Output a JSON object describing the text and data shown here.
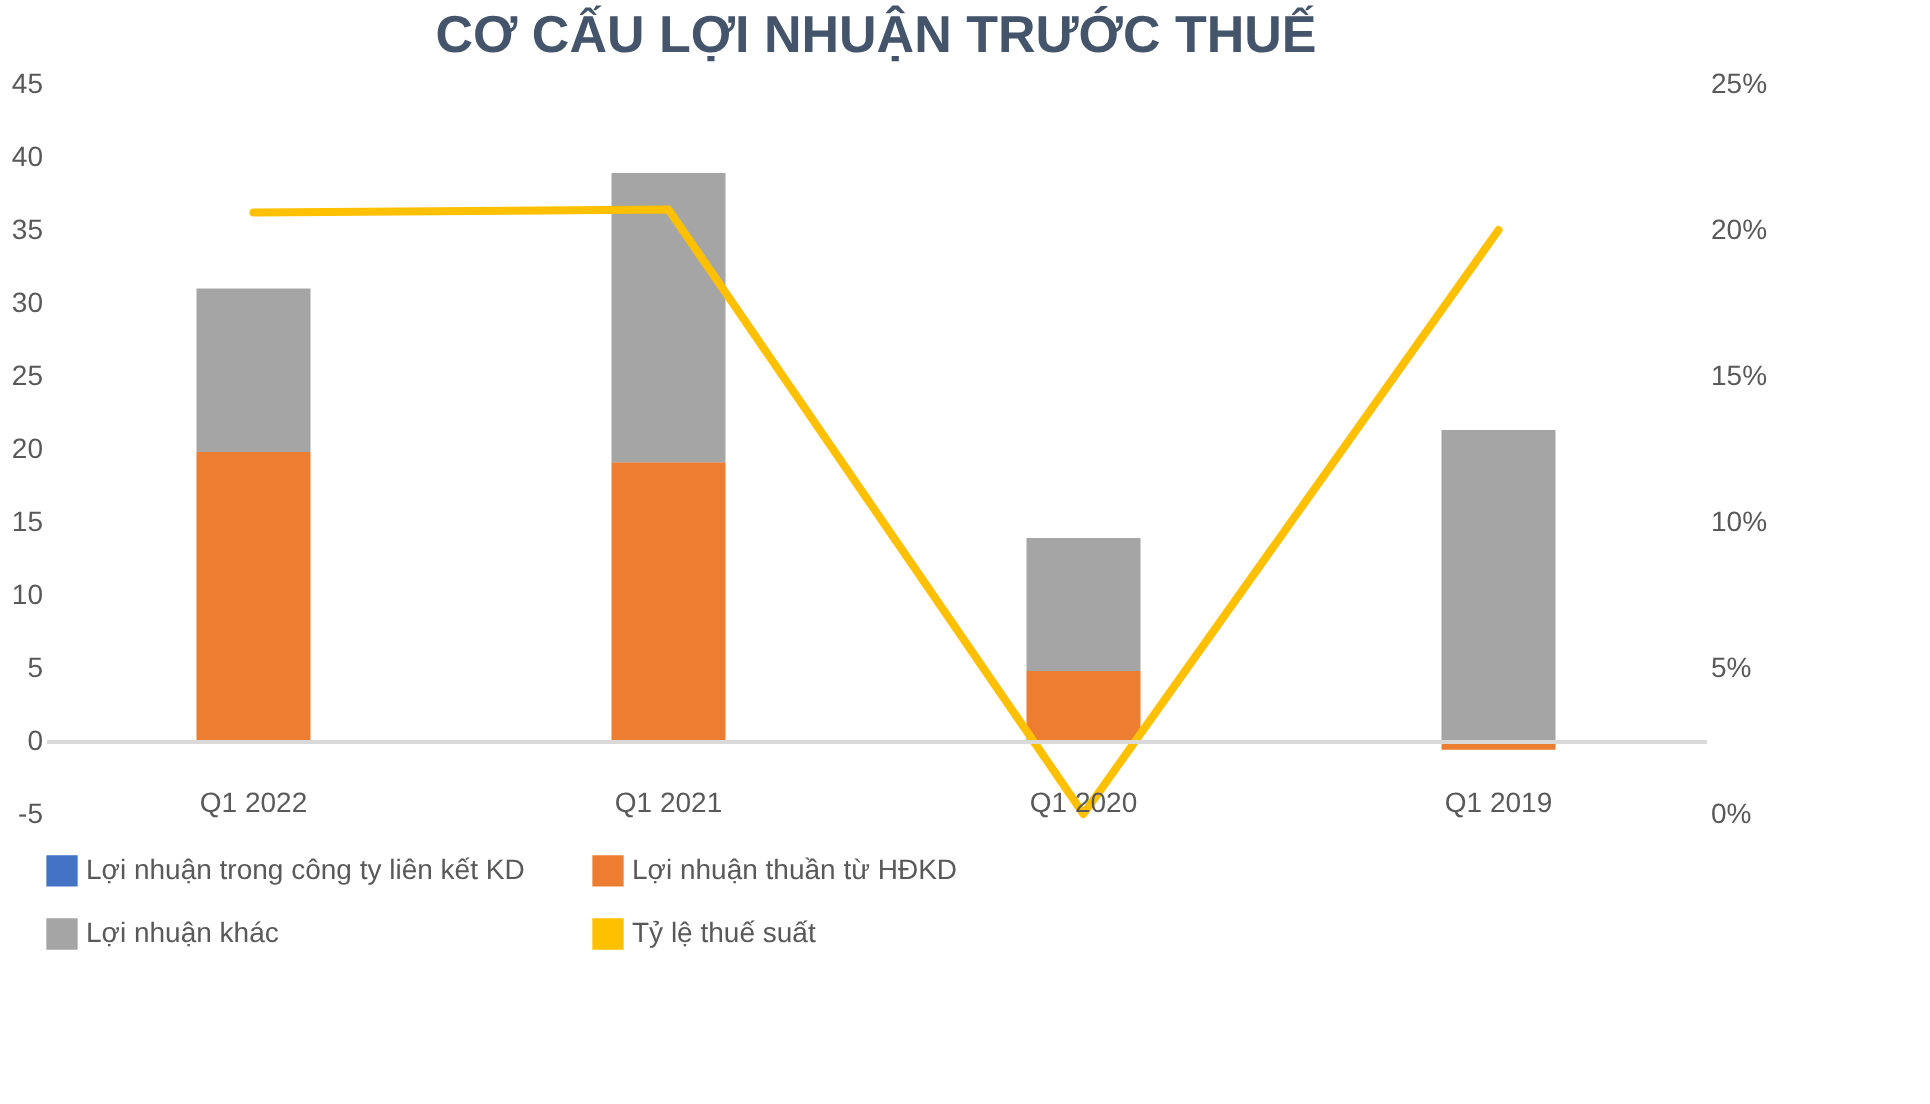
{
  "chart_data": {
    "type": "bar",
    "title": "CƠ CẤU LỢI NHUẬN TRƯỚC THUẾ",
    "stacked": true,
    "categories": [
      "Q1 2022",
      "Q1 2021",
      "Q1 2020",
      "Q1 2019"
    ],
    "series": [
      {
        "name": "Lợi nhuận trong công ty liên kết KD",
        "color": "#4472c4",
        "values": [
          0,
          0,
          0,
          0
        ]
      },
      {
        "name": "Lợi nhuận thuần từ HĐKD",
        "color": "#ed7d31",
        "values": [
          19.8,
          19.1,
          4.8,
          -0.6
        ]
      },
      {
        "name": "Lợi nhuận khác",
        "color": "#a5a5a5",
        "values": [
          11.2,
          19.8,
          9.1,
          21.3
        ]
      },
      {
        "name": "Tỷ lệ thuế suất",
        "type": "line",
        "axis": "y2",
        "color": "#ffc000",
        "values": [
          20.6,
          20.7,
          0,
          20.0
        ]
      }
    ],
    "ylim": [
      -5,
      45
    ],
    "yticks": [
      -5,
      0,
      5,
      10,
      15,
      20,
      25,
      30,
      35,
      40,
      45
    ],
    "y2lim": [
      0,
      25
    ],
    "y2ticks": [
      {
        "value": 0,
        "label": "0%"
      },
      {
        "value": 5,
        "label": "5%"
      },
      {
        "value": 10,
        "label": "10%"
      },
      {
        "value": 15,
        "label": "15%"
      },
      {
        "value": 20,
        "label": "20%"
      },
      {
        "value": 25,
        "label": "25%"
      }
    ],
    "grid": false,
    "legend": "bottom"
  }
}
